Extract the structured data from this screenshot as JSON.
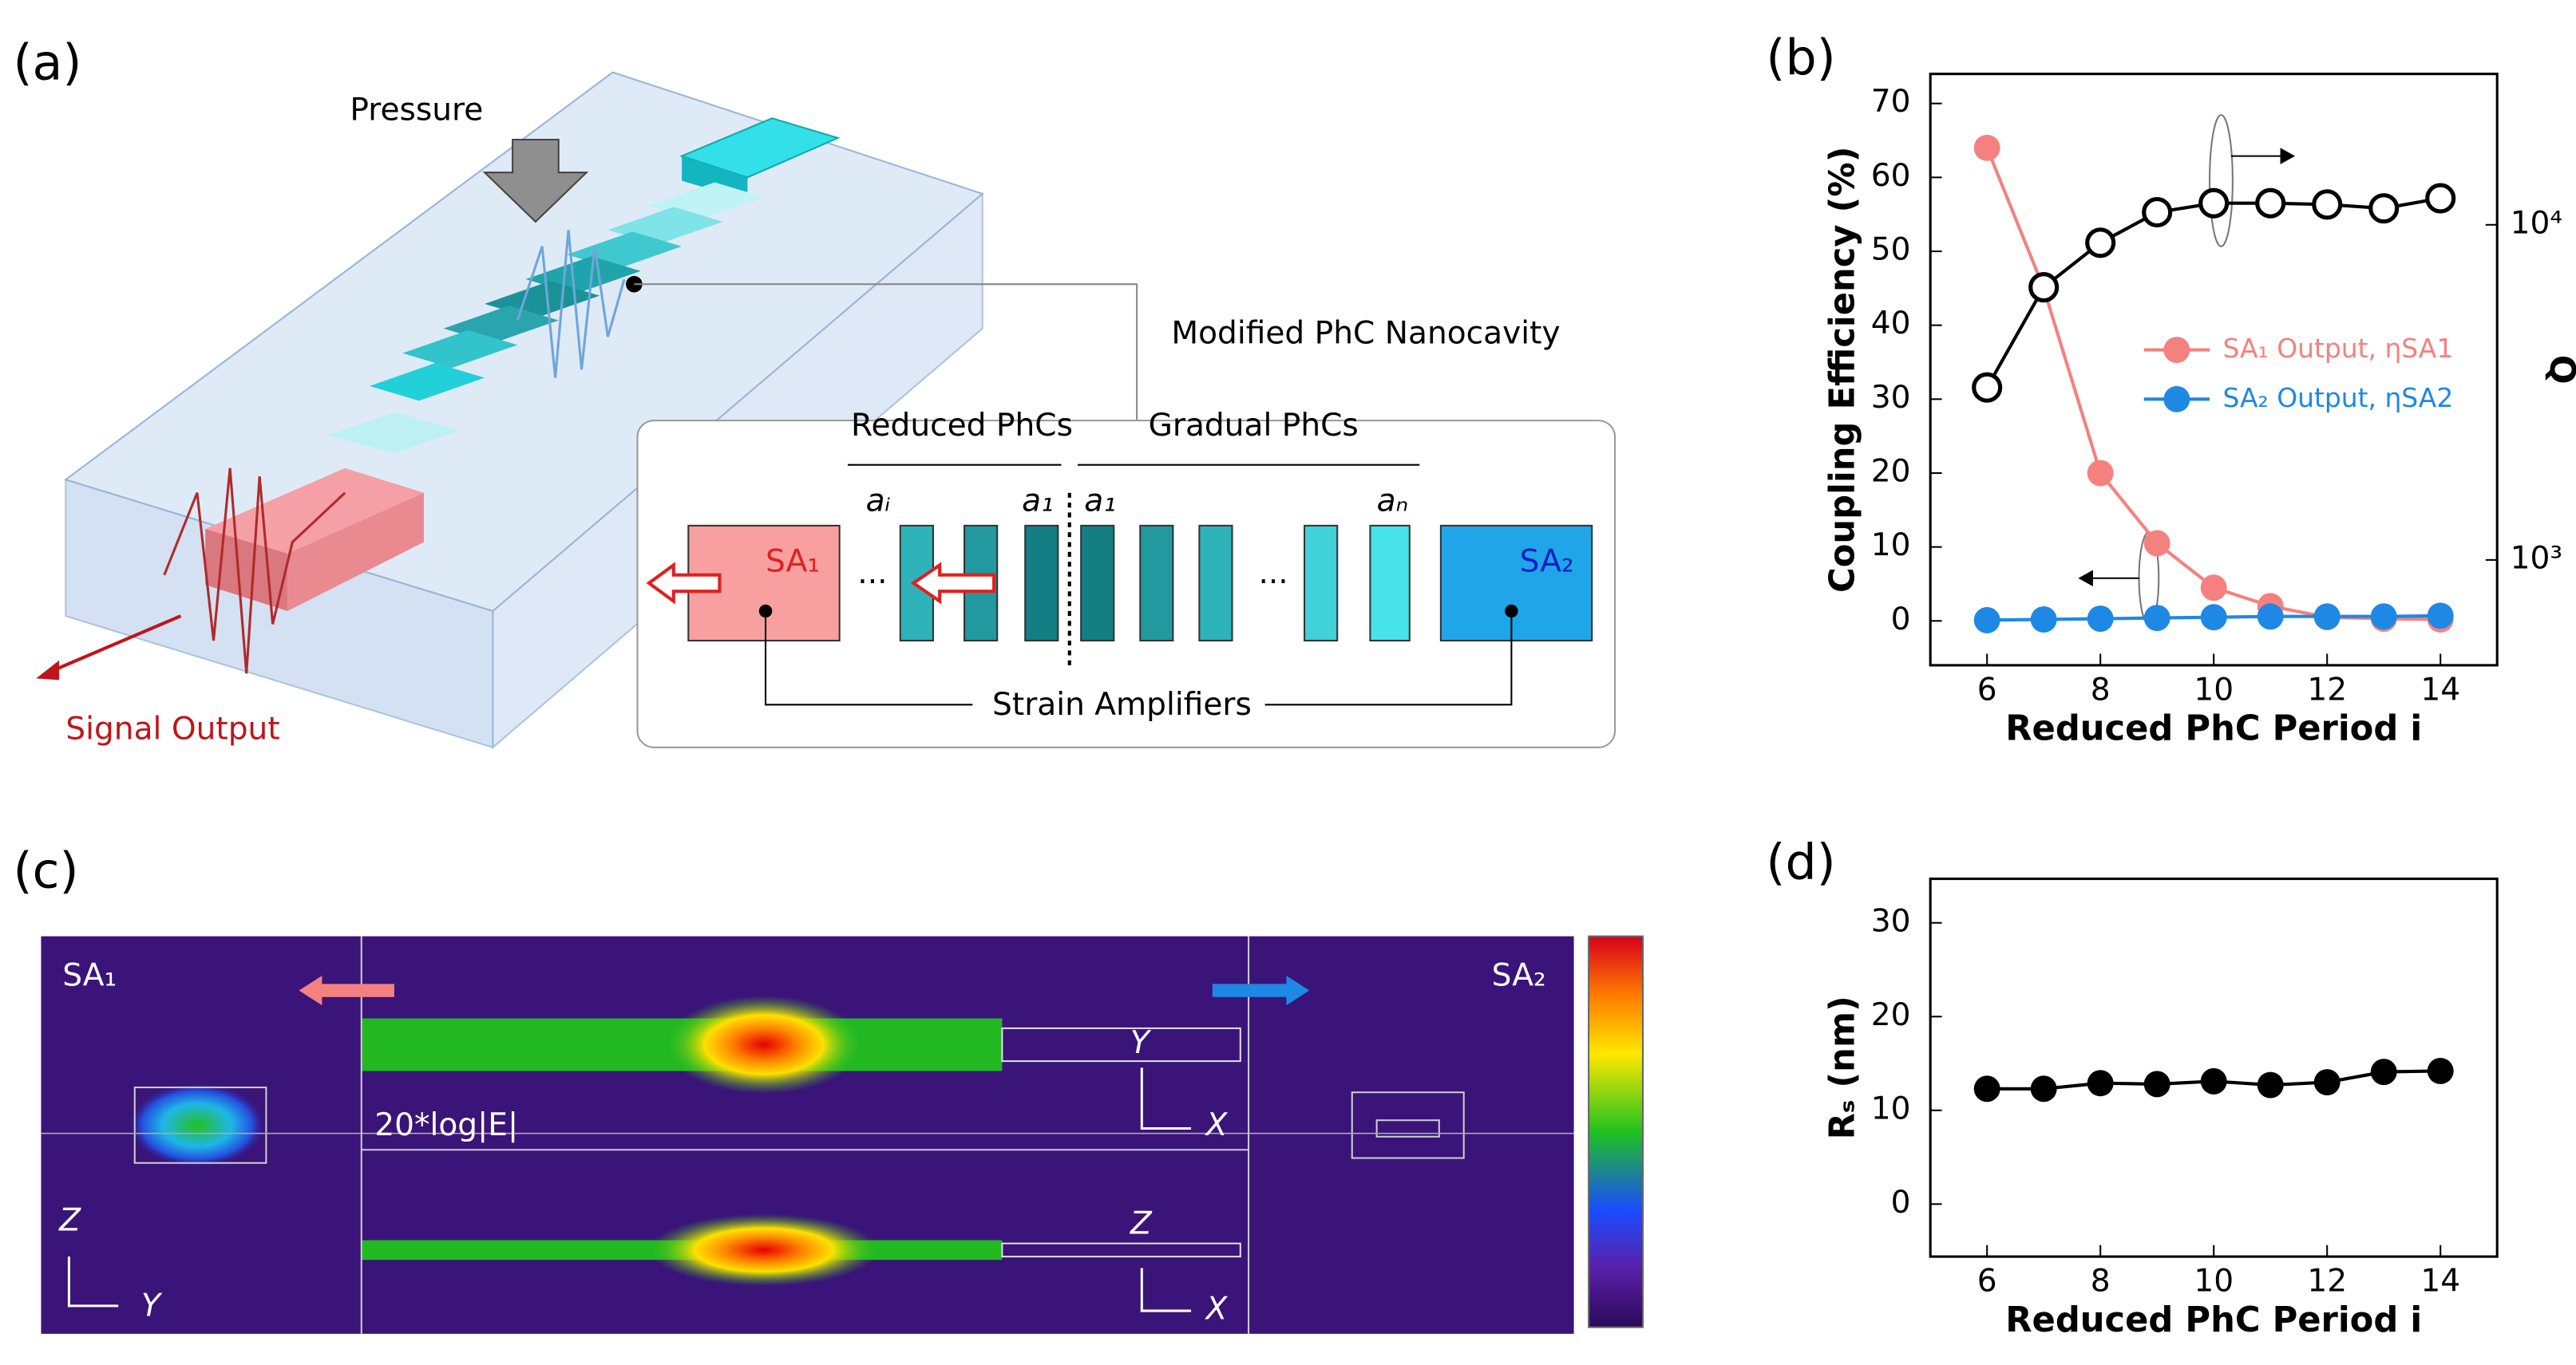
{
  "panel_a": {
    "label": "(a)",
    "pressure": "Pressure",
    "signal_output": "Signal Output",
    "inset_title": "Modified PhC Nanocavity",
    "reduced": "Reduced PhCs",
    "gradual": "Gradual PhCs",
    "a_i": "aᵢ",
    "a_1_left": "a₁",
    "a_1_right": "a₁",
    "a_n": "aₙ",
    "sa1": "SA₁",
    "sa2": "SA₂",
    "dots_left": "...",
    "dots_right": "...",
    "strain": "Strain Amplifiers"
  },
  "panel_c": {
    "label": "(c)",
    "sa1": "SA₁",
    "sa2": "SA₂",
    "field": "20*log|E|",
    "top_axis_v": "Y",
    "top_axis_h": "X",
    "bottom_axis_v": "Z",
    "bottom_axis_h": "X",
    "left_axis_v": "Z",
    "left_axis_h": "Y"
  },
  "chart_data": [
    {
      "type": "line",
      "label": "(b)",
      "xlabel": "Reduced PhC Period i",
      "ylabel": "Coupling Efficiency (%)",
      "y2label": "Q",
      "x": [
        6,
        7,
        8,
        9,
        10,
        11,
        12,
        13,
        14
      ],
      "xlim": [
        5,
        15
      ],
      "xticks": [
        6,
        8,
        10,
        12,
        14
      ],
      "ylim": [
        -6,
        74
      ],
      "yticks": [
        0,
        10,
        20,
        30,
        40,
        50,
        60,
        70
      ],
      "y2lim": [
        485,
        28200
      ],
      "y2scale": "log",
      "y2ticks": [
        {
          "value": 1000,
          "label": "10³"
        },
        {
          "value": 10000,
          "label": "10⁴"
        }
      ],
      "legend": "right",
      "series": [
        {
          "name": "SA₁ Output, ηSA1",
          "color": "#f4817f",
          "values": [
            64,
            45,
            20,
            10.5,
            4.5,
            2,
            0.5,
            0.3,
            0.2
          ]
        },
        {
          "name": "SA₂ Output, ηSA2",
          "color": "#1e88e5",
          "values": [
            0.1,
            0.2,
            0.3,
            0.4,
            0.5,
            0.6,
            0.6,
            0.6,
            0.7
          ]
        },
        {
          "color": "#000000",
          "axis": "y2",
          "marker": "open",
          "values": [
            3270,
            6510,
            8840,
            10900,
            11600,
            11600,
            11500,
            11200,
            12000
          ]
        }
      ]
    },
    {
      "type": "line",
      "label": "(d)",
      "xlabel": "Reduced PhC Period i",
      "ylabel": "Rₛ (nm)",
      "x": [
        6,
        7,
        8,
        9,
        10,
        11,
        12,
        13,
        14
      ],
      "xlim": [
        5,
        15
      ],
      "xticks": [
        6,
        8,
        10,
        12,
        14
      ],
      "ylim": [
        -5.6,
        34.7
      ],
      "yticks": [
        0,
        10,
        20,
        30
      ],
      "series": [
        {
          "color": "#000000",
          "values": [
            12.3,
            12.3,
            12.9,
            12.8,
            13.1,
            12.7,
            13.0,
            14.1,
            14.2
          ]
        }
      ]
    }
  ]
}
